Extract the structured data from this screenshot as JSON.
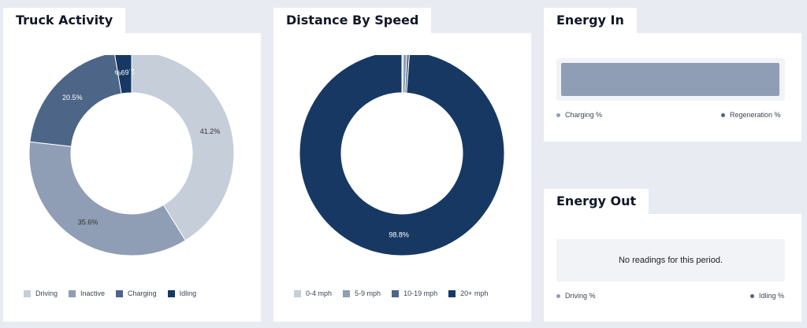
{
  "panels": {
    "truck_activity": {
      "title": "Truck Activity"
    },
    "distance_by_speed": {
      "title": "Distance By Speed"
    },
    "energy_in": {
      "title": "Energy In",
      "legend": [
        "Charging %",
        "Regeneration %"
      ],
      "bar_color": "#8f9db5",
      "legend_colors": [
        "#8f9db5",
        "#4d6587"
      ]
    },
    "energy_out": {
      "title": "Energy Out",
      "empty_message": "No readings for this period.",
      "legend": [
        "Driving %",
        "Idling %"
      ],
      "legend_colors": [
        "#8f9db5",
        "#4d6587"
      ]
    }
  },
  "chart_data": [
    {
      "type": "pie",
      "donut": true,
      "title": "Truck Activity",
      "categories": [
        "Driving",
        "Inactive",
        "Charging",
        "Idling"
      ],
      "values": [
        41.2,
        35.6,
        20.5,
        2.69
      ],
      "labels": [
        "41.2%",
        "35.6%",
        "20.5%",
        "2.69%"
      ],
      "colors": [
        "#c6ced9",
        "#8f9db5",
        "#4d6587",
        "#173863"
      ],
      "legend_position": "bottom"
    },
    {
      "type": "pie",
      "donut": true,
      "title": "Distance By Speed",
      "categories": [
        "0-4 mph",
        "5-9 mph",
        "10-19 mph",
        "20+ mph"
      ],
      "values": [
        0.2,
        0.6,
        0.4,
        98.8
      ],
      "labels": [
        "",
        "",
        "",
        "98.8%"
      ],
      "colors": [
        "#c6ced9",
        "#8f9db5",
        "#4d6587",
        "#173863"
      ],
      "legend_position": "bottom"
    },
    {
      "type": "bar",
      "orientation": "horizontal",
      "stacked": true,
      "title": "Energy In",
      "series": [
        {
          "name": "Charging %",
          "values": [
            99
          ]
        },
        {
          "name": "Regeneration %",
          "values": [
            1
          ]
        }
      ],
      "xlim": [
        0,
        100
      ]
    }
  ]
}
